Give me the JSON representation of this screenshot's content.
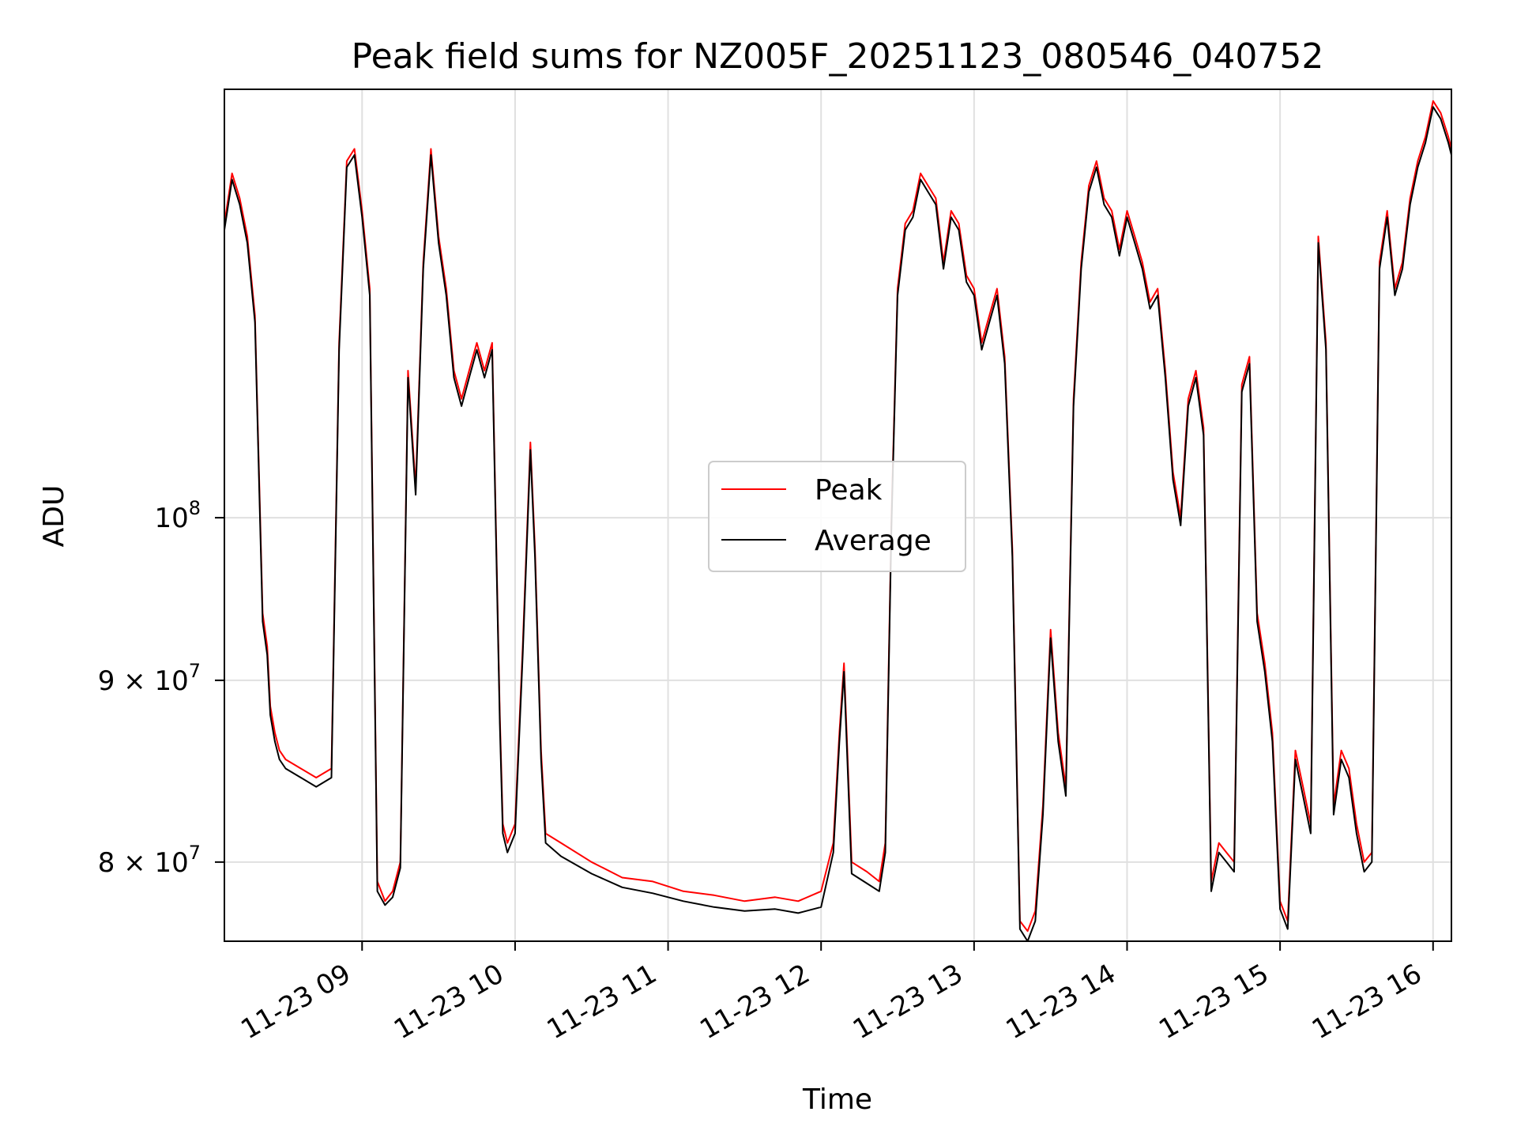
{
  "chart_data": {
    "type": "line",
    "title": "Peak field sums for NZ005F_20251123_080546_040752",
    "xlabel": "Time",
    "ylabel": "ADU",
    "yscale": "log",
    "xlim_hours": [
      8.1,
      16.12
    ],
    "ylim": [
      76000000,
      132000000
    ],
    "grid": true,
    "legend_position": "center",
    "x_ticks": [
      {
        "value": 9,
        "label": "11-23 09"
      },
      {
        "value": 10,
        "label": "11-23 10"
      },
      {
        "value": 11,
        "label": "11-23 11"
      },
      {
        "value": 12,
        "label": "11-23 12"
      },
      {
        "value": 13,
        "label": "11-23 13"
      },
      {
        "value": 14,
        "label": "11-23 14"
      },
      {
        "value": 15,
        "label": "11-23 15"
      },
      {
        "value": 16,
        "label": "11-23 16"
      }
    ],
    "y_ticks": [
      {
        "value": 80000000,
        "mant": "8",
        "exp": "7"
      },
      {
        "value": 90000000,
        "mant": "9",
        "exp": "7"
      },
      {
        "value": 100000000,
        "base": "10",
        "exp": "8"
      }
    ],
    "x_hours": [
      8.1,
      8.15,
      8.2,
      8.25,
      8.3,
      8.35,
      8.38,
      8.4,
      8.43,
      8.46,
      8.5,
      8.6,
      8.7,
      8.8,
      8.85,
      8.9,
      8.95,
      9.0,
      9.05,
      9.1,
      9.15,
      9.2,
      9.25,
      9.3,
      9.35,
      9.4,
      9.45,
      9.5,
      9.55,
      9.6,
      9.65,
      9.7,
      9.75,
      9.8,
      9.85,
      9.9,
      9.92,
      9.95,
      10.0,
      10.05,
      10.1,
      10.13,
      10.17,
      10.2,
      10.3,
      10.5,
      10.7,
      10.9,
      11.1,
      11.3,
      11.5,
      11.7,
      11.85,
      12.0,
      12.08,
      12.12,
      12.15,
      12.2,
      12.3,
      12.38,
      12.42,
      12.46,
      12.5,
      12.55,
      12.6,
      12.65,
      12.7,
      12.75,
      12.8,
      12.85,
      12.9,
      12.95,
      13.0,
      13.05,
      13.1,
      13.15,
      13.2,
      13.25,
      13.3,
      13.35,
      13.4,
      13.45,
      13.5,
      13.55,
      13.6,
      13.65,
      13.7,
      13.75,
      13.8,
      13.85,
      13.9,
      13.95,
      14.0,
      14.05,
      14.1,
      14.15,
      14.2,
      14.25,
      14.3,
      14.35,
      14.4,
      14.45,
      14.5,
      14.55,
      14.6,
      14.65,
      14.7,
      14.75,
      14.8,
      14.85,
      14.9,
      14.95,
      15.0,
      15.05,
      15.1,
      15.15,
      15.2,
      15.25,
      15.3,
      15.35,
      15.4,
      15.45,
      15.5,
      15.55,
      15.6,
      15.65,
      15.7,
      15.75,
      15.8,
      15.85,
      15.9,
      15.95,
      16.0,
      16.05,
      16.1,
      16.12
    ],
    "series": [
      {
        "name": "Peak",
        "color": "#ff0000",
        "values": [
          121000000,
          125000000,
          123000000,
          120000000,
          114000000,
          94000000,
          92000000,
          88500000,
          87000000,
          86000000,
          85500000,
          85000000,
          84500000,
          85000000,
          112000000,
          126000000,
          127000000,
          122000000,
          116000000,
          79000000,
          78000000,
          78500000,
          80000000,
          110000000,
          102000000,
          118000000,
          127000000,
          120000000,
          116000000,
          110000000,
          108000000,
          110000000,
          112000000,
          110000000,
          112000000,
          88000000,
          82000000,
          81000000,
          82000000,
          92000000,
          105000000,
          98000000,
          86000000,
          81500000,
          81000000,
          80000000,
          79200000,
          79000000,
          78500000,
          78300000,
          78000000,
          78200000,
          78000000,
          78500000,
          81000000,
          87000000,
          91000000,
          80000000,
          79500000,
          79000000,
          81000000,
          100000000,
          116000000,
          121000000,
          122000000,
          125000000,
          124000000,
          123000000,
          118000000,
          122000000,
          121000000,
          117000000,
          116000000,
          112000000,
          114000000,
          116000000,
          111000000,
          98000000,
          77000000,
          76500000,
          77500000,
          83000000,
          93000000,
          87000000,
          84000000,
          108000000,
          118000000,
          124000000,
          126000000,
          123000000,
          122000000,
          119000000,
          122000000,
          120000000,
          118000000,
          115000000,
          116000000,
          110000000,
          103000000,
          100000000,
          108000000,
          110000000,
          106000000,
          79000000,
          81000000,
          80500000,
          80000000,
          109000000,
          111000000,
          94000000,
          91000000,
          87000000,
          78000000,
          77000000,
          86000000,
          84000000,
          82000000,
          120000000,
          112000000,
          83000000,
          86000000,
          85000000,
          82000000,
          80000000,
          80500000,
          118000000,
          122000000,
          116000000,
          118000000,
          123000000,
          126000000,
          128000000,
          131000000,
          130000000,
          128000000,
          127000000
        ]
      },
      {
        "name": "Average",
        "color": "#000000",
        "values": [
          120500000,
          124500000,
          122500000,
          119500000,
          113500000,
          93500000,
          91500000,
          88000000,
          86500000,
          85500000,
          85000000,
          84500000,
          84000000,
          84500000,
          111500000,
          125500000,
          126500000,
          121500000,
          115500000,
          78500000,
          77800000,
          78200000,
          79700000,
          109500000,
          101500000,
          117500000,
          126500000,
          119500000,
          115500000,
          109500000,
          107500000,
          109500000,
          111500000,
          109500000,
          111500000,
          87500000,
          81500000,
          80500000,
          81500000,
          91500000,
          104500000,
          97500000,
          85500000,
          81000000,
          80300000,
          79400000,
          78700000,
          78400000,
          78000000,
          77700000,
          77500000,
          77600000,
          77400000,
          77700000,
          80500000,
          86500000,
          90500000,
          79400000,
          78900000,
          78500000,
          80500000,
          99500000,
          115500000,
          120500000,
          121500000,
          124500000,
          123500000,
          122500000,
          117500000,
          121500000,
          120500000,
          116500000,
          115500000,
          111500000,
          113500000,
          115500000,
          110500000,
          97500000,
          76600000,
          76000000,
          77000000,
          82500000,
          92500000,
          86500000,
          83500000,
          107500000,
          117500000,
          123500000,
          125500000,
          122500000,
          121500000,
          118500000,
          121500000,
          119500000,
          117500000,
          114500000,
          115500000,
          109500000,
          102500000,
          99500000,
          107500000,
          109500000,
          105500000,
          78500000,
          80500000,
          80000000,
          79500000,
          108500000,
          110500000,
          93500000,
          90500000,
          86500000,
          77600000,
          76600000,
          85500000,
          83500000,
          81500000,
          119500000,
          111500000,
          82500000,
          85500000,
          84500000,
          81500000,
          79500000,
          80000000,
          117500000,
          121500000,
          115500000,
          117500000,
          122500000,
          125500000,
          127500000,
          130500000,
          129500000,
          127500000,
          126500000
        ]
      }
    ]
  }
}
